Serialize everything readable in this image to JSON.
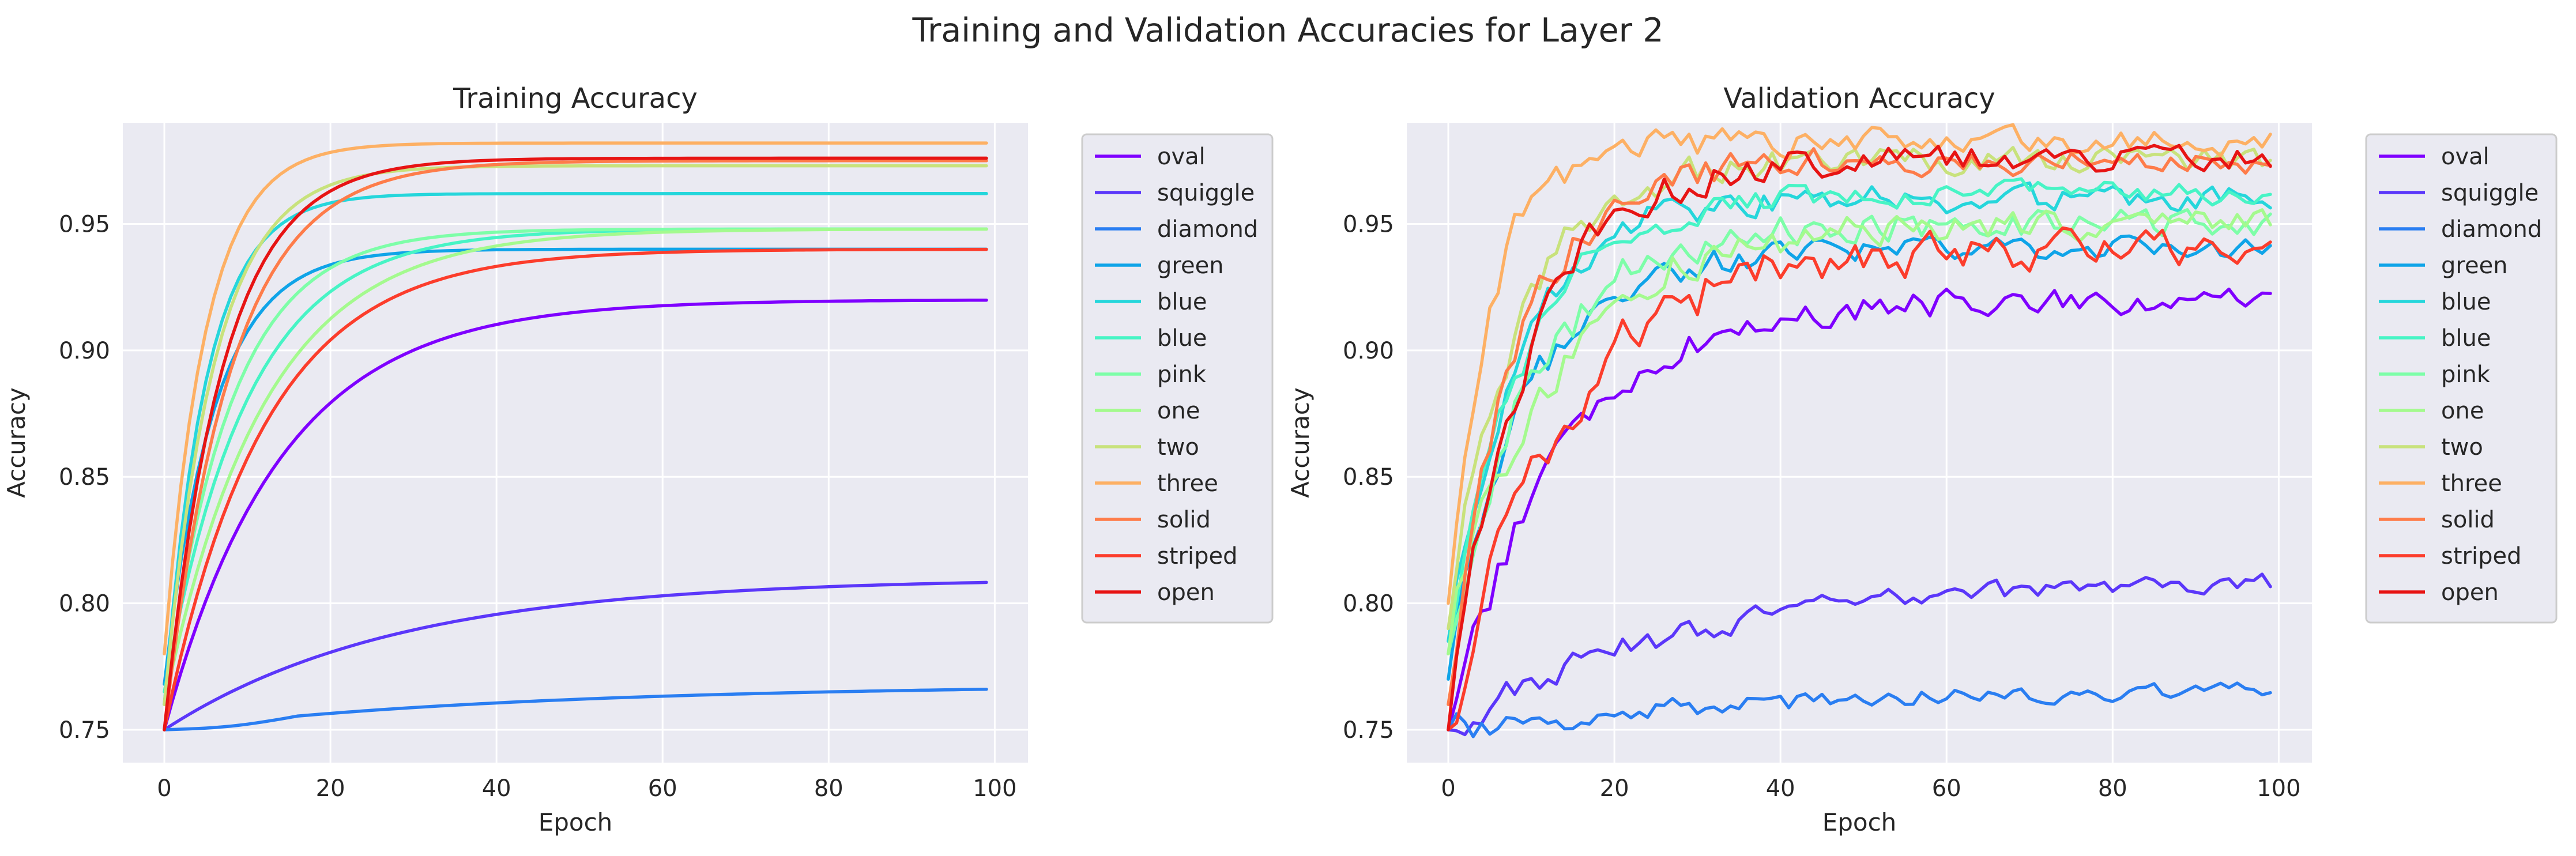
{
  "figure": {
    "title": "Training and Validation Accuracies for Layer 2"
  },
  "chart_data": [
    {
      "type": "line",
      "title": "Training Accuracy",
      "xlabel": "Epoch",
      "ylabel": "Accuracy",
      "xlim": [
        -5,
        104
      ],
      "ylim": [
        0.737,
        0.99
      ],
      "x_ticks": [
        "0",
        "20",
        "40",
        "60",
        "80",
        "100"
      ],
      "y_ticks": [
        "0.75",
        "0.80",
        "0.85",
        "0.90",
        "0.95"
      ],
      "grid": true,
      "legend_position": "outside-right",
      "series": [
        {
          "name": "oval",
          "color": "#7f00ff",
          "start": 0.75,
          "final": 0.92,
          "tau": 14
        },
        {
          "name": "squiggle",
          "color": "#5b37fa",
          "start": 0.75,
          "final": 0.81,
          "tau": 28
        },
        {
          "name": "diamond",
          "color": "#2a7ef2",
          "start": 0.75,
          "final": 0.768,
          "dip": 0.0015,
          "tau": 45
        },
        {
          "name": "green",
          "color": "#0fa4e8",
          "start": 0.768,
          "final": 0.94,
          "tau": 6
        },
        {
          "name": "blue",
          "color": "#25d6db",
          "start": 0.76,
          "final": 0.962,
          "tau": 5
        },
        {
          "name": "blue",
          "color": "#47f4c5",
          "start": 0.765,
          "final": 0.948,
          "tau": 10
        },
        {
          "name": "pink",
          "color": "#7dfea8",
          "start": 0.76,
          "final": 0.948,
          "tau": 8
        },
        {
          "name": "one",
          "color": "#a4fa8e",
          "start": 0.76,
          "final": 0.948,
          "tau": 12
        },
        {
          "name": "two",
          "color": "#c8e27c",
          "start": 0.76,
          "final": 0.973,
          "tau": 6
        },
        {
          "name": "three",
          "color": "#fdb064",
          "start": 0.78,
          "final": 0.982,
          "tau": 5
        },
        {
          "name": "solid",
          "color": "#fe7c4a",
          "start": 0.75,
          "final": 0.975,
          "tau": 8
        },
        {
          "name": "striped",
          "color": "#fc3d2c",
          "start": 0.75,
          "final": 0.94,
          "tau": 12
        },
        {
          "name": "open",
          "color": "#e71414",
          "start": 0.75,
          "final": 0.976,
          "tau": 7
        }
      ]
    },
    {
      "type": "line",
      "title": "Validation Accuracy",
      "xlabel": "Epoch",
      "ylabel": "Accuracy",
      "xlim": [
        -5,
        104
      ],
      "ylim": [
        0.737,
        0.99
      ],
      "x_ticks": [
        "0",
        "20",
        "40",
        "60",
        "80",
        "100"
      ],
      "y_ticks": [
        "0.75",
        "0.80",
        "0.85",
        "0.90",
        "0.95"
      ],
      "grid": true,
      "legend_position": "outside-right",
      "series": [
        {
          "name": "oval",
          "color": "#7f00ff",
          "start": 0.75,
          "final": 0.92,
          "tau": 13,
          "noise": 0.008
        },
        {
          "name": "squiggle",
          "color": "#5b37fa",
          "start": 0.75,
          "final": 0.81,
          "tau": 28,
          "noise": 0.006
        },
        {
          "name": "diamond",
          "color": "#2a7ef2",
          "start": 0.75,
          "final": 0.768,
          "tau": 45,
          "noise": 0.005
        },
        {
          "name": "green",
          "color": "#0fa4e8",
          "start": 0.77,
          "final": 0.94,
          "tau": 9,
          "noise": 0.007
        },
        {
          "name": "blue",
          "color": "#25d6db",
          "start": 0.785,
          "final": 0.96,
          "tau": 8,
          "noise": 0.008
        },
        {
          "name": "blue",
          "color": "#47f4c5",
          "start": 0.78,
          "final": 0.962,
          "tau": 9,
          "noise": 0.007
        },
        {
          "name": "pink",
          "color": "#7dfea8",
          "start": 0.78,
          "final": 0.95,
          "tau": 10,
          "noise": 0.009
        },
        {
          "name": "one",
          "color": "#a4fa8e",
          "start": 0.78,
          "final": 0.95,
          "tau": 12,
          "noise": 0.009
        },
        {
          "name": "two",
          "color": "#c8e27c",
          "start": 0.79,
          "final": 0.975,
          "tau": 8,
          "noise": 0.008
        },
        {
          "name": "three",
          "color": "#fdb064",
          "start": 0.8,
          "final": 0.982,
          "tau": 5,
          "noise": 0.008
        },
        {
          "name": "solid",
          "color": "#fe7c4a",
          "start": 0.76,
          "final": 0.975,
          "tau": 8,
          "noise": 0.008
        },
        {
          "name": "striped",
          "color": "#fc3d2c",
          "start": 0.75,
          "final": 0.94,
          "tau": 13,
          "noise": 0.012
        },
        {
          "name": "open",
          "color": "#e71414",
          "start": 0.75,
          "final": 0.976,
          "tau": 9,
          "noise": 0.008
        }
      ]
    }
  ]
}
